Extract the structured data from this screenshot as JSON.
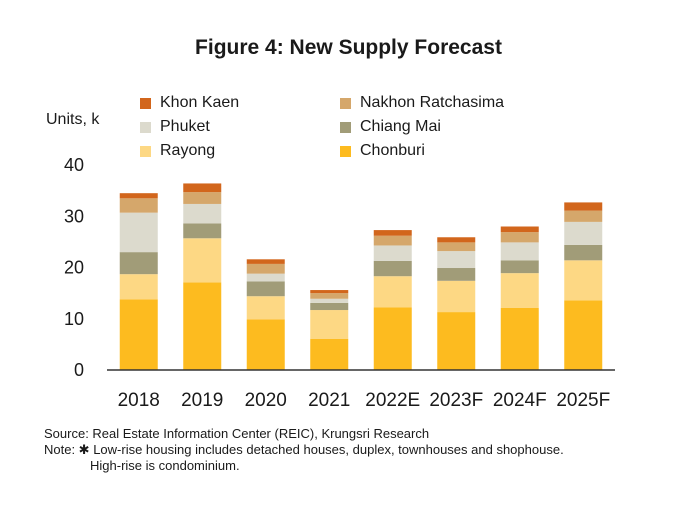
{
  "title": "Figure 4: New Supply Forecast",
  "ylabel": "Units, k",
  "chart_data": {
    "type": "bar",
    "stacked": true,
    "title": "Figure 4: New Supply Forecast",
    "ylabel": "Units, k",
    "ylim": [
      0,
      40
    ],
    "yticks": [
      0,
      10,
      20,
      30,
      40
    ],
    "grid": false,
    "legend": "top",
    "categories": [
      "2018",
      "2019",
      "2020",
      "2021",
      "2022E",
      "2023F",
      "2024F",
      "2025F"
    ],
    "series": [
      {
        "name": "Chonburi",
        "color": "#fdbb1f",
        "values": [
          13.8,
          17.1,
          9.9,
          6.1,
          12.2,
          11.3,
          12.1,
          13.6
        ]
      },
      {
        "name": "Rayong",
        "color": "#fdd884",
        "values": [
          4.9,
          8.6,
          4.5,
          5.6,
          6.1,
          6.1,
          6.8,
          7.8
        ]
      },
      {
        "name": "Chiang Mai",
        "color": "#a19c78",
        "values": [
          4.3,
          2.9,
          2.9,
          1.4,
          3.0,
          2.5,
          2.5,
          3.0
        ]
      },
      {
        "name": "Phuket",
        "color": "#dcdacd",
        "values": [
          7.7,
          3.8,
          1.5,
          0.8,
          3.0,
          3.3,
          3.5,
          4.5
        ]
      },
      {
        "name": "Nakhon Ratchasima",
        "color": "#d5a76b",
        "values": [
          2.8,
          2.3,
          1.9,
          1.1,
          1.9,
          1.7,
          2.0,
          2.2
        ]
      },
      {
        "name": "Khon Kaen",
        "color": "#d2661c",
        "values": [
          1.0,
          1.7,
          0.9,
          0.6,
          1.1,
          1.0,
          1.1,
          1.6
        ]
      }
    ]
  },
  "legend": [
    {
      "label": "Khon Kaen",
      "color": "#d2661c"
    },
    {
      "label": "Nakhon Ratchasima",
      "color": "#d5a76b"
    },
    {
      "label": "Phuket",
      "color": "#dcdacd"
    },
    {
      "label": "Chiang Mai",
      "color": "#a19c78"
    },
    {
      "label": "Rayong",
      "color": "#fdd884"
    },
    {
      "label": "Chonburi",
      "color": "#fdbb1f"
    }
  ],
  "notes": {
    "source": "Source: Real Estate Information Center (REIC), Krungsri Research",
    "note_line1": "Note: ✱ Low-rise housing  includes detached houses, duplex, townhouses and shophouse.",
    "note_line2": "High-rise is condominium."
  }
}
